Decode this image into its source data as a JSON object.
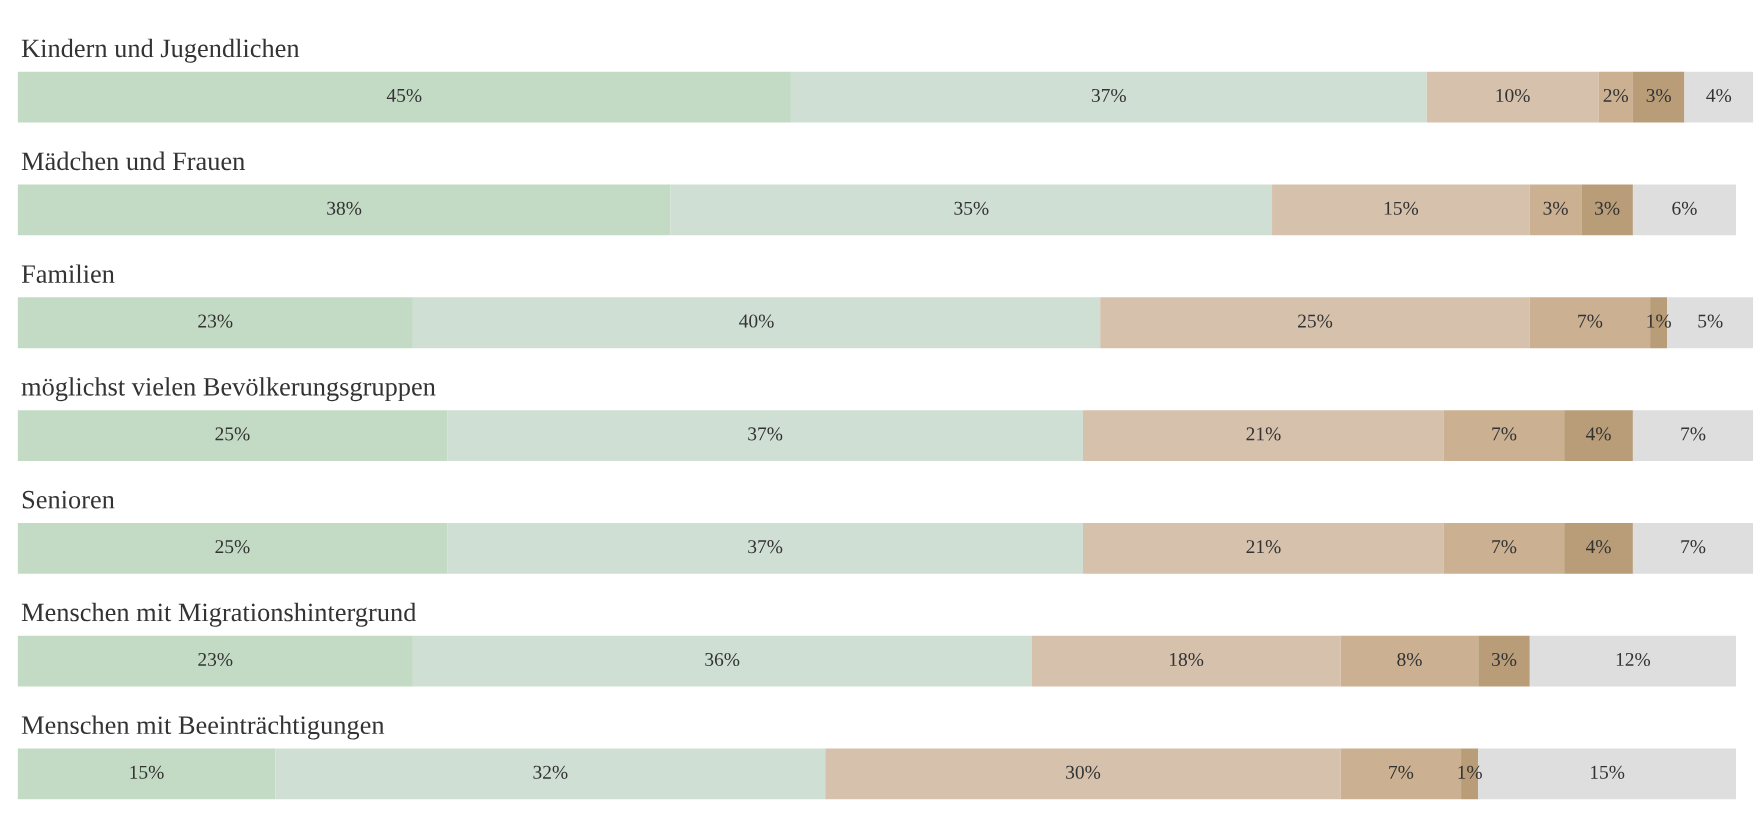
{
  "chart_data": {
    "type": "bar",
    "orientation": "horizontal",
    "stacked": true,
    "categories": [
      "Kindern und Jugendlichen",
      "Mädchen und Frauen",
      "Familien",
      "möglichst vielen Bevölkerungsgruppen",
      "Senioren",
      "Menschen mit Migrationshintergrund",
      "Menschen mit Beeinträchtigungen"
    ],
    "series": [
      {
        "color": "#c3dbc4",
        "values": [
          45,
          38,
          23,
          25,
          25,
          23,
          15
        ],
        "value_labels": [
          "45%",
          "38%",
          "23%",
          "25%",
          "25%",
          "23%",
          "15%"
        ]
      },
      {
        "color": "#cfdfd4",
        "values": [
          37,
          35,
          40,
          37,
          37,
          36,
          32
        ],
        "value_labels": [
          "37%",
          "35%",
          "40%",
          "37%",
          "37%",
          "36%",
          "32%"
        ]
      },
      {
        "color": "#d6c1ad",
        "values": [
          10,
          15,
          25,
          21,
          21,
          18,
          30
        ],
        "value_labels": [
          "10%",
          "15%",
          "25%",
          "21%",
          "21%",
          "18%",
          "30%"
        ]
      },
      {
        "color": "#cbb091",
        "values": [
          2,
          3,
          7,
          7,
          7,
          8,
          7
        ],
        "value_labels": [
          "2%",
          "3%",
          "7%",
          "7%",
          "7%",
          "8%",
          "7%"
        ]
      },
      {
        "color": "#b89d78",
        "values": [
          3,
          3,
          1,
          4,
          4,
          3,
          1
        ],
        "value_labels": [
          "3%",
          "3%",
          "1%",
          "4%",
          "4%",
          "3%",
          "1%"
        ]
      },
      {
        "color": "#dedede",
        "values": [
          4,
          6,
          5,
          7,
          7,
          12,
          15
        ],
        "value_labels": [
          "4%",
          "6%",
          "5%",
          "7%",
          "7%",
          "12%",
          "15%"
        ]
      }
    ]
  }
}
